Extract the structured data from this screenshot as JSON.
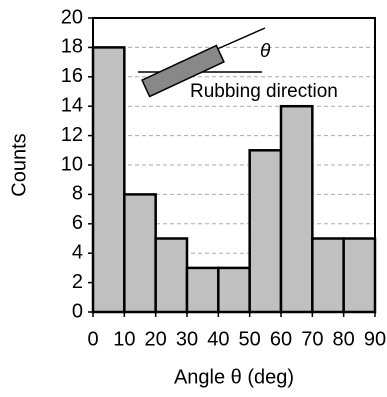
{
  "chart_data": {
    "type": "histogram",
    "x_label": "Angle θ (deg)",
    "y_label": "Counts",
    "bins": [
      0,
      10,
      20,
      30,
      40,
      50,
      60,
      70,
      80,
      90
    ],
    "counts": [
      18,
      8,
      5,
      3,
      3,
      11,
      14,
      5,
      5
    ],
    "color": "#c0c0c0",
    "xlim": [
      0,
      90
    ],
    "xticks": [
      0,
      10,
      20,
      30,
      40,
      50,
      60,
      70,
      80,
      90
    ],
    "ylim": [
      0,
      20
    ],
    "yticks": [
      0,
      2,
      4,
      6,
      8,
      10,
      12,
      14,
      16,
      18,
      20
    ],
    "grid": true,
    "annotations": [
      "θ",
      "Rubbing direction"
    ]
  }
}
